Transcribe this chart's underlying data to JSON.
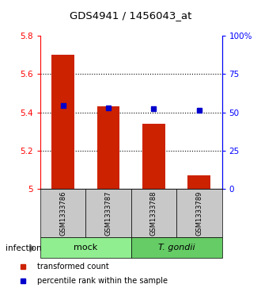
{
  "title": "GDS4941 / 1456043_at",
  "samples": [
    "GSM1333786",
    "GSM1333787",
    "GSM1333788",
    "GSM1333789"
  ],
  "transformed_counts": [
    5.7,
    5.43,
    5.34,
    5.07
  ],
  "percentile_ranks": [
    54.5,
    53.0,
    52.5,
    51.5
  ],
  "ylim_left": [
    5.0,
    5.8
  ],
  "ylim_right": [
    0,
    100
  ],
  "yticks_left": [
    5.0,
    5.2,
    5.4,
    5.6,
    5.8
  ],
  "yticks_right": [
    0,
    25,
    50,
    75,
    100
  ],
  "ytick_labels_right": [
    "0",
    "25",
    "50",
    "75",
    "100%"
  ],
  "groups": [
    {
      "label": "mock",
      "samples": [
        0,
        1
      ],
      "color": "#90EE90"
    },
    {
      "label": "T. gondii",
      "samples": [
        2,
        3
      ],
      "color": "#66CC66"
    }
  ],
  "group_label": "infection",
  "bar_color": "#CC2200",
  "marker_color": "#0000CC",
  "bar_width": 0.5,
  "background_color": "#ffffff",
  "sample_box_color": "#C8C8C8",
  "legend_bar_label": "transformed count",
  "legend_marker_label": "percentile rank within the sample"
}
